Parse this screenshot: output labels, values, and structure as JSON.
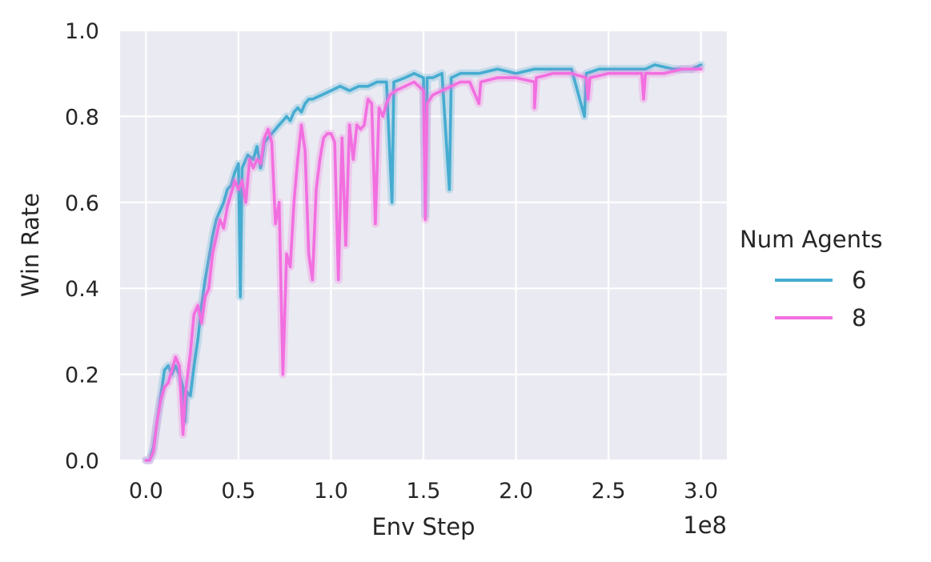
{
  "chart_data": {
    "type": "line",
    "xlabel": "Env Step",
    "ylabel": "Win Rate",
    "x_offset_label": "1e8",
    "xlim": [
      -0.14,
      3.14
    ],
    "ylim": [
      0.0,
      1.0
    ],
    "x_ticks": [
      0.0,
      0.5,
      1.0,
      1.5,
      2.0,
      2.5,
      3.0
    ],
    "x_tick_labels": [
      "0.0",
      "0.5",
      "1.0",
      "1.5",
      "2.0",
      "2.5",
      "3.0"
    ],
    "y_ticks": [
      0.0,
      0.2,
      0.4,
      0.6,
      0.8,
      1.0
    ],
    "y_tick_labels": [
      "0.0",
      "0.2",
      "0.4",
      "0.6",
      "0.8",
      "1.0"
    ],
    "grid": true,
    "legend": {
      "title": "Num Agents",
      "placement": "right"
    },
    "background_color": "#EAEAF2",
    "series": [
      {
        "name": "6",
        "color": "#46ACD1",
        "points": [
          [
            0,
            0
          ],
          [
            0.02,
            0
          ],
          [
            0.04,
            0.03
          ],
          [
            0.06,
            0.09
          ],
          [
            0.08,
            0.15
          ],
          [
            0.1,
            0.21
          ],
          [
            0.12,
            0.22
          ],
          [
            0.14,
            0.2
          ],
          [
            0.16,
            0.22
          ],
          [
            0.18,
            0.2
          ],
          [
            0.2,
            0.17
          ],
          [
            0.21,
            0.09
          ],
          [
            0.22,
            0.16
          ],
          [
            0.24,
            0.15
          ],
          [
            0.26,
            0.22
          ],
          [
            0.28,
            0.28
          ],
          [
            0.3,
            0.36
          ],
          [
            0.32,
            0.42
          ],
          [
            0.34,
            0.47
          ],
          [
            0.36,
            0.52
          ],
          [
            0.38,
            0.56
          ],
          [
            0.4,
            0.58
          ],
          [
            0.42,
            0.6
          ],
          [
            0.44,
            0.63
          ],
          [
            0.46,
            0.64
          ],
          [
            0.48,
            0.67
          ],
          [
            0.5,
            0.69
          ],
          [
            0.51,
            0.38
          ],
          [
            0.52,
            0.68
          ],
          [
            0.55,
            0.71
          ],
          [
            0.58,
            0.7
          ],
          [
            0.6,
            0.73
          ],
          [
            0.62,
            0.68
          ],
          [
            0.64,
            0.74
          ],
          [
            0.66,
            0.75
          ],
          [
            0.68,
            0.76
          ],
          [
            0.7,
            0.77
          ],
          [
            0.72,
            0.78
          ],
          [
            0.74,
            0.79
          ],
          [
            0.76,
            0.8
          ],
          [
            0.78,
            0.79
          ],
          [
            0.8,
            0.81
          ],
          [
            0.82,
            0.82
          ],
          [
            0.84,
            0.81
          ],
          [
            0.86,
            0.83
          ],
          [
            0.88,
            0.84
          ],
          [
            0.9,
            0.84
          ],
          [
            0.95,
            0.85
          ],
          [
            1.0,
            0.86
          ],
          [
            1.05,
            0.87
          ],
          [
            1.1,
            0.86
          ],
          [
            1.15,
            0.87
          ],
          [
            1.2,
            0.87
          ],
          [
            1.25,
            0.88
          ],
          [
            1.3,
            0.88
          ],
          [
            1.33,
            0.6
          ],
          [
            1.34,
            0.88
          ],
          [
            1.4,
            0.89
          ],
          [
            1.45,
            0.9
          ],
          [
            1.5,
            0.89
          ],
          [
            1.51,
            0.57
          ],
          [
            1.52,
            0.89
          ],
          [
            1.55,
            0.89
          ],
          [
            1.6,
            0.9
          ],
          [
            1.64,
            0.63
          ],
          [
            1.65,
            0.89
          ],
          [
            1.7,
            0.9
          ],
          [
            1.8,
            0.9
          ],
          [
            1.9,
            0.91
          ],
          [
            2.0,
            0.9
          ],
          [
            2.1,
            0.91
          ],
          [
            2.2,
            0.91
          ],
          [
            2.3,
            0.91
          ],
          [
            2.37,
            0.8
          ],
          [
            2.38,
            0.9
          ],
          [
            2.45,
            0.91
          ],
          [
            2.55,
            0.91
          ],
          [
            2.65,
            0.91
          ],
          [
            2.7,
            0.91
          ],
          [
            2.75,
            0.92
          ],
          [
            2.85,
            0.91
          ],
          [
            2.95,
            0.91
          ],
          [
            3.0,
            0.92
          ]
        ]
      },
      {
        "name": "8",
        "color": "#F26FE0",
        "points": [
          [
            0,
            0
          ],
          [
            0.02,
            0
          ],
          [
            0.04,
            0.02
          ],
          [
            0.06,
            0.09
          ],
          [
            0.08,
            0.14
          ],
          [
            0.1,
            0.17
          ],
          [
            0.12,
            0.18
          ],
          [
            0.14,
            0.21
          ],
          [
            0.16,
            0.24
          ],
          [
            0.18,
            0.22
          ],
          [
            0.2,
            0.06
          ],
          [
            0.21,
            0.14
          ],
          [
            0.22,
            0.18
          ],
          [
            0.24,
            0.25
          ],
          [
            0.26,
            0.34
          ],
          [
            0.28,
            0.36
          ],
          [
            0.3,
            0.32
          ],
          [
            0.32,
            0.38
          ],
          [
            0.34,
            0.4
          ],
          [
            0.36,
            0.48
          ],
          [
            0.38,
            0.52
          ],
          [
            0.4,
            0.56
          ],
          [
            0.42,
            0.54
          ],
          [
            0.44,
            0.59
          ],
          [
            0.46,
            0.62
          ],
          [
            0.48,
            0.65
          ],
          [
            0.5,
            0.63
          ],
          [
            0.52,
            0.65
          ],
          [
            0.54,
            0.6
          ],
          [
            0.56,
            0.7
          ],
          [
            0.58,
            0.68
          ],
          [
            0.6,
            0.7
          ],
          [
            0.62,
            0.69
          ],
          [
            0.64,
            0.75
          ],
          [
            0.66,
            0.77
          ],
          [
            0.68,
            0.74
          ],
          [
            0.7,
            0.55
          ],
          [
            0.72,
            0.6
          ],
          [
            0.74,
            0.2
          ],
          [
            0.76,
            0.48
          ],
          [
            0.78,
            0.45
          ],
          [
            0.8,
            0.6
          ],
          [
            0.82,
            0.7
          ],
          [
            0.84,
            0.78
          ],
          [
            0.86,
            0.72
          ],
          [
            0.88,
            0.48
          ],
          [
            0.9,
            0.42
          ],
          [
            0.92,
            0.63
          ],
          [
            0.94,
            0.7
          ],
          [
            0.96,
            0.75
          ],
          [
            0.98,
            0.76
          ],
          [
            1.0,
            0.76
          ],
          [
            1.02,
            0.74
          ],
          [
            1.04,
            0.42
          ],
          [
            1.06,
            0.75
          ],
          [
            1.08,
            0.5
          ],
          [
            1.1,
            0.78
          ],
          [
            1.12,
            0.7
          ],
          [
            1.14,
            0.78
          ],
          [
            1.16,
            0.77
          ],
          [
            1.18,
            0.78
          ],
          [
            1.2,
            0.84
          ],
          [
            1.22,
            0.83
          ],
          [
            1.24,
            0.55
          ],
          [
            1.26,
            0.82
          ],
          [
            1.28,
            0.8
          ],
          [
            1.3,
            0.83
          ],
          [
            1.32,
            0.85
          ],
          [
            1.35,
            0.86
          ],
          [
            1.4,
            0.87
          ],
          [
            1.45,
            0.88
          ],
          [
            1.5,
            0.86
          ],
          [
            1.51,
            0.56
          ],
          [
            1.52,
            0.83
          ],
          [
            1.55,
            0.85
          ],
          [
            1.6,
            0.86
          ],
          [
            1.65,
            0.87
          ],
          [
            1.7,
            0.88
          ],
          [
            1.75,
            0.88
          ],
          [
            1.8,
            0.83
          ],
          [
            1.81,
            0.88
          ],
          [
            1.9,
            0.89
          ],
          [
            2.0,
            0.89
          ],
          [
            2.1,
            0.88
          ],
          [
            2.1,
            0.82
          ],
          [
            2.11,
            0.89
          ],
          [
            2.2,
            0.9
          ],
          [
            2.3,
            0.9
          ],
          [
            2.38,
            0.89
          ],
          [
            2.39,
            0.84
          ],
          [
            2.4,
            0.89
          ],
          [
            2.5,
            0.9
          ],
          [
            2.6,
            0.9
          ],
          [
            2.68,
            0.9
          ],
          [
            2.69,
            0.84
          ],
          [
            2.7,
            0.9
          ],
          [
            2.8,
            0.9
          ],
          [
            2.9,
            0.91
          ],
          [
            3.0,
            0.91
          ]
        ]
      }
    ]
  }
}
